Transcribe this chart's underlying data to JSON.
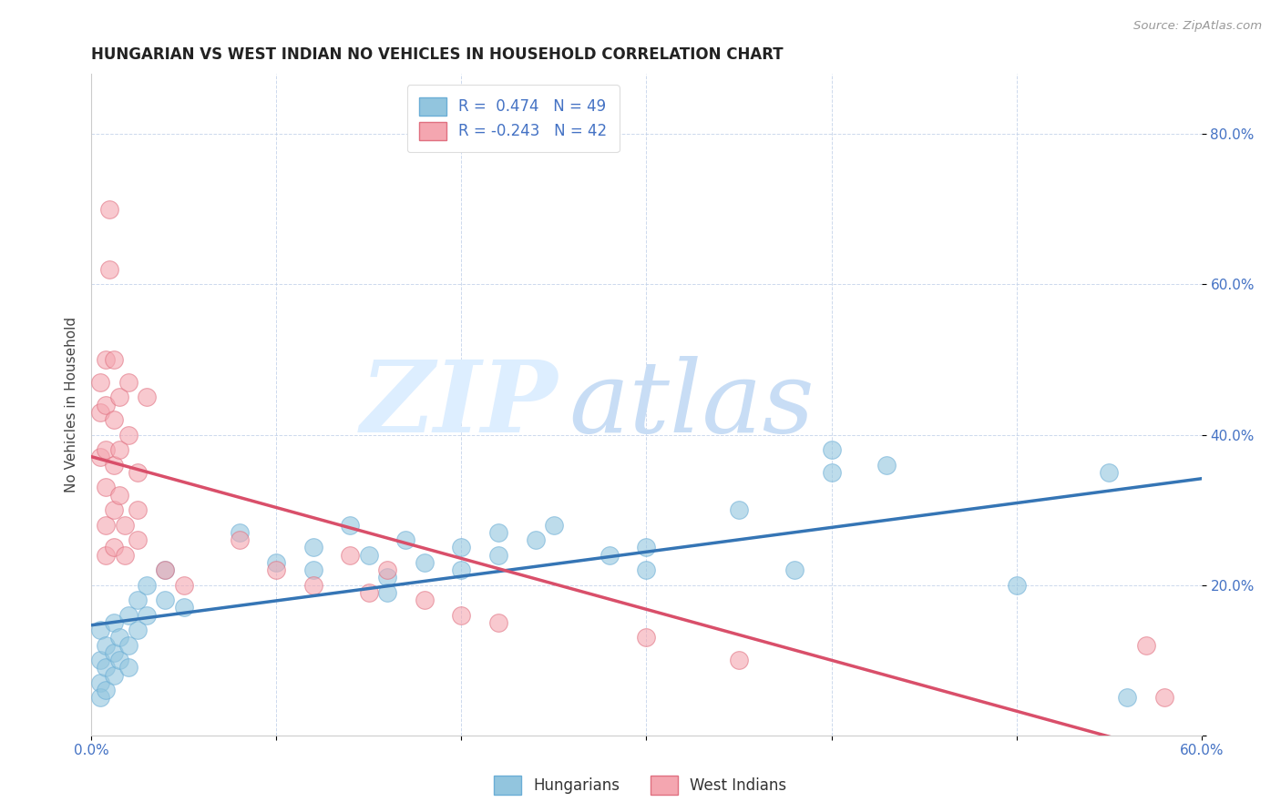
{
  "title": "HUNGARIAN VS WEST INDIAN NO VEHICLES IN HOUSEHOLD CORRELATION CHART",
  "source_text": "Source: ZipAtlas.com",
  "ylabel": "No Vehicles in Household",
  "xlim": [
    0.0,
    0.6
  ],
  "ylim": [
    0.0,
    0.88
  ],
  "xtick_vals": [
    0.0,
    0.1,
    0.2,
    0.3,
    0.4,
    0.5,
    0.6
  ],
  "xtick_labels": [
    "0.0%",
    "",
    "",
    "",
    "",
    "",
    "60.0%"
  ],
  "ytick_vals": [
    0.0,
    0.2,
    0.4,
    0.6,
    0.8
  ],
  "ytick_labels": [
    "",
    "20.0%",
    "40.0%",
    "60.0%",
    "80.0%"
  ],
  "hungarian_color": "#92c5de",
  "hungarian_edge_color": "#6baed6",
  "west_indian_color": "#f4a6b0",
  "west_indian_edge_color": "#e07080",
  "hungarian_line_color": "#3575b5",
  "west_indian_line_color": "#d94f6a",
  "hungarian_R": 0.474,
  "hungarian_N": 49,
  "west_indian_R": -0.243,
  "west_indian_N": 42,
  "legend_label_1": "Hungarians",
  "legend_label_2": "West Indians",
  "title_fontsize": 12,
  "tick_fontsize": 11,
  "hungarian_scatter": [
    [
      0.005,
      0.14
    ],
    [
      0.005,
      0.1
    ],
    [
      0.005,
      0.07
    ],
    [
      0.005,
      0.05
    ],
    [
      0.008,
      0.12
    ],
    [
      0.008,
      0.09
    ],
    [
      0.008,
      0.06
    ],
    [
      0.012,
      0.15
    ],
    [
      0.012,
      0.11
    ],
    [
      0.012,
      0.08
    ],
    [
      0.015,
      0.13
    ],
    [
      0.015,
      0.1
    ],
    [
      0.02,
      0.16
    ],
    [
      0.02,
      0.12
    ],
    [
      0.02,
      0.09
    ],
    [
      0.025,
      0.18
    ],
    [
      0.025,
      0.14
    ],
    [
      0.03,
      0.2
    ],
    [
      0.03,
      0.16
    ],
    [
      0.04,
      0.22
    ],
    [
      0.04,
      0.18
    ],
    [
      0.05,
      0.17
    ],
    [
      0.08,
      0.27
    ],
    [
      0.1,
      0.23
    ],
    [
      0.12,
      0.25
    ],
    [
      0.12,
      0.22
    ],
    [
      0.14,
      0.28
    ],
    [
      0.15,
      0.24
    ],
    [
      0.16,
      0.21
    ],
    [
      0.16,
      0.19
    ],
    [
      0.17,
      0.26
    ],
    [
      0.18,
      0.23
    ],
    [
      0.2,
      0.25
    ],
    [
      0.2,
      0.22
    ],
    [
      0.22,
      0.27
    ],
    [
      0.22,
      0.24
    ],
    [
      0.24,
      0.26
    ],
    [
      0.25,
      0.28
    ],
    [
      0.28,
      0.24
    ],
    [
      0.3,
      0.22
    ],
    [
      0.3,
      0.25
    ],
    [
      0.35,
      0.3
    ],
    [
      0.38,
      0.22
    ],
    [
      0.4,
      0.35
    ],
    [
      0.4,
      0.38
    ],
    [
      0.43,
      0.36
    ],
    [
      0.5,
      0.2
    ],
    [
      0.55,
      0.35
    ],
    [
      0.56,
      0.05
    ]
  ],
  "west_indian_scatter": [
    [
      0.005,
      0.47
    ],
    [
      0.005,
      0.43
    ],
    [
      0.005,
      0.37
    ],
    [
      0.008,
      0.5
    ],
    [
      0.008,
      0.44
    ],
    [
      0.008,
      0.38
    ],
    [
      0.008,
      0.33
    ],
    [
      0.008,
      0.28
    ],
    [
      0.008,
      0.24
    ],
    [
      0.01,
      0.7
    ],
    [
      0.01,
      0.62
    ],
    [
      0.012,
      0.5
    ],
    [
      0.012,
      0.42
    ],
    [
      0.012,
      0.36
    ],
    [
      0.012,
      0.3
    ],
    [
      0.012,
      0.25
    ],
    [
      0.015,
      0.45
    ],
    [
      0.015,
      0.38
    ],
    [
      0.015,
      0.32
    ],
    [
      0.018,
      0.28
    ],
    [
      0.018,
      0.24
    ],
    [
      0.02,
      0.47
    ],
    [
      0.02,
      0.4
    ],
    [
      0.025,
      0.35
    ],
    [
      0.025,
      0.3
    ],
    [
      0.025,
      0.26
    ],
    [
      0.03,
      0.45
    ],
    [
      0.04,
      0.22
    ],
    [
      0.05,
      0.2
    ],
    [
      0.08,
      0.26
    ],
    [
      0.1,
      0.22
    ],
    [
      0.12,
      0.2
    ],
    [
      0.14,
      0.24
    ],
    [
      0.15,
      0.19
    ],
    [
      0.16,
      0.22
    ],
    [
      0.18,
      0.18
    ],
    [
      0.2,
      0.16
    ],
    [
      0.22,
      0.15
    ],
    [
      0.3,
      0.13
    ],
    [
      0.35,
      0.1
    ],
    [
      0.57,
      0.12
    ],
    [
      0.58,
      0.05
    ]
  ]
}
